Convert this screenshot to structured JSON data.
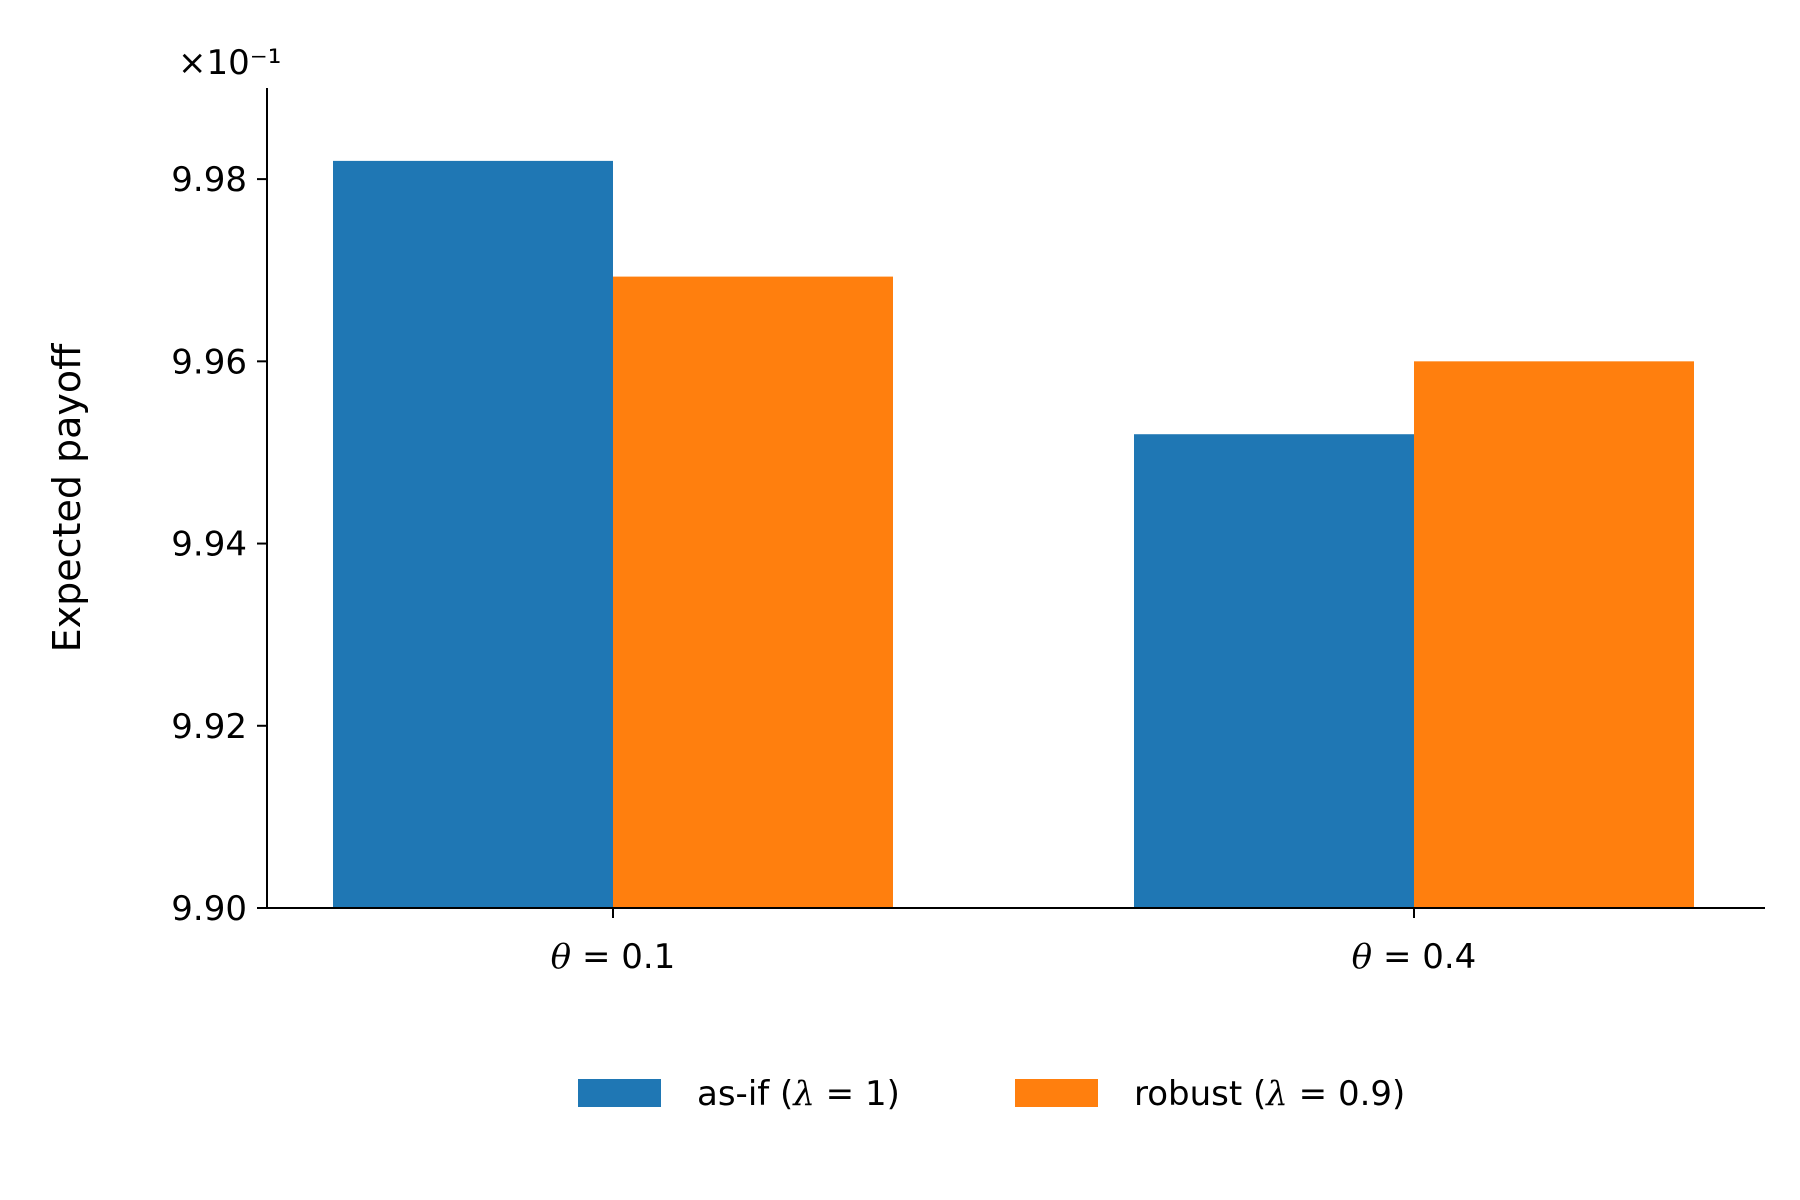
{
  "chart_data": {
    "type": "bar",
    "categories": [
      "θ = 0.1",
      "θ = 0.4"
    ],
    "series": [
      {
        "name": "as-if (λ = 1)",
        "values": [
          0.9982,
          0.9952
        ],
        "color": "#1f77b4"
      },
      {
        "name": "robust (λ = 0.9)",
        "values": [
          0.99693,
          0.996
        ],
        "color": "#ff7f0e"
      }
    ],
    "xlabel": "",
    "ylabel": "Expected payoff",
    "ylim": [
      0.99,
      0.999
    ],
    "yticks": [
      0.99,
      0.992,
      0.994,
      0.996,
      0.998
    ],
    "ytick_labels": [
      "9.90",
      "9.92",
      "9.94",
      "9.96",
      "9.98"
    ],
    "offset_text": "×10⁻¹",
    "grid": false,
    "legend_position": "bottom-center"
  }
}
